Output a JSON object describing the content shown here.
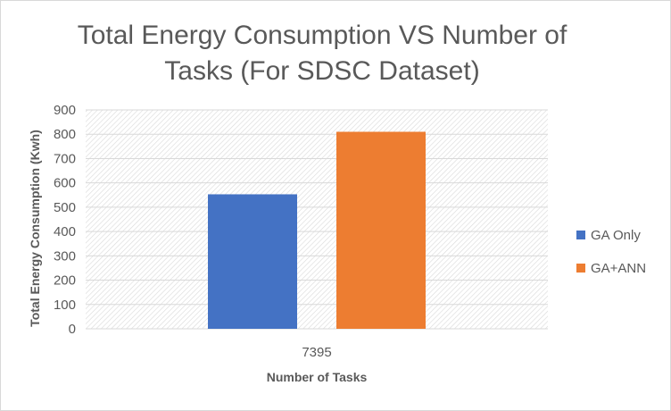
{
  "chart_data": {
    "type": "bar",
    "title_line1": "Total Energy Consumption VS Number of",
    "title_line2": "Tasks (For SDSC Dataset)",
    "xlabel": "Number of Tasks",
    "ylabel": "Total Energy Consumption (Kwh)",
    "categories": [
      "7395"
    ],
    "yticks": [
      "0",
      "100",
      "200",
      "300",
      "400",
      "500",
      "600",
      "700",
      "800",
      "900"
    ],
    "ylim": [
      0,
      900
    ],
    "grid": true,
    "legend_position": "right",
    "series": [
      {
        "name": "GA Only",
        "values": [
          553
        ],
        "color": "#4472c4"
      },
      {
        "name": "GA+ANN",
        "values": [
          810
        ],
        "color": "#ed7d31"
      }
    ]
  }
}
